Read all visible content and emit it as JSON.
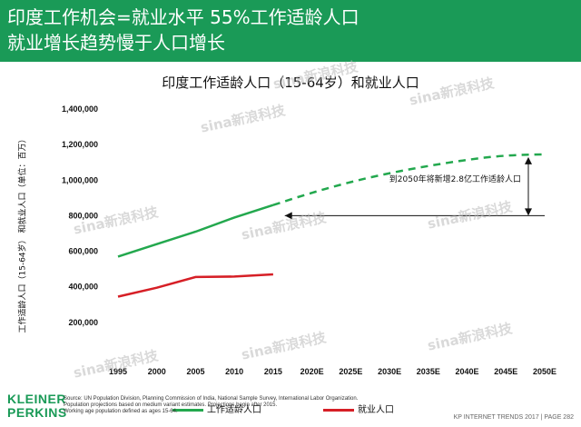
{
  "header": {
    "line1": "印度工作机会=就业水平 55%工作适龄人口",
    "line2": "就业增长趋势慢于人口增长"
  },
  "chart_data": {
    "type": "line",
    "title": "印度工作适龄人口（15-64岁）和就业人口",
    "ylabel": "工作适龄人口（15-64岁） 和就业人口（单位：百万）",
    "xlabel": "",
    "categories": [
      "1995",
      "2000",
      "2005",
      "2010",
      "2015",
      "2020E",
      "2025E",
      "2030E",
      "2035E",
      "2040E",
      "2045E",
      "2050E"
    ],
    "ylim": [
      0,
      1400000
    ],
    "yticks": [
      200000,
      400000,
      600000,
      800000,
      1000000,
      1200000,
      1400000
    ],
    "ytick_labels": [
      "200,000",
      "400,000",
      "600,000",
      "800,000",
      "1,000,000",
      "1,200,000",
      "1,400,000"
    ],
    "grid": false,
    "series": [
      {
        "name": "工作适龄人口",
        "color": "#23a84e",
        "values": [
          570000,
          640000,
          710000,
          790000,
          860000,
          930000,
          990000,
          1040000,
          1080000,
          1115000,
          1140000,
          1145000
        ],
        "projected_from_index": 4
      },
      {
        "name": "就业人口",
        "color": "#d61f26",
        "values": [
          345000,
          395000,
          455000,
          458000,
          470000,
          null,
          null,
          null,
          null,
          null,
          null,
          null
        ]
      }
    ],
    "annotations": [
      {
        "text": "到2050年将新增2.8亿工作适龄人口",
        "from_x_index": 4.3,
        "to_x_index": 11.0,
        "y": 800000
      }
    ],
    "legend_placement": "bottom"
  },
  "watermark": {
    "text": "sina新浪科技"
  },
  "logo": {
    "line1": "KLEINER",
    "line2": "PERKINS"
  },
  "sources": {
    "line1": "Source: UN Population Division, Planning Commission of India, National Sample Survey, International Labor Organization.",
    "line2": "Population projections based on medium variant estimates. Projections begin after 2015.",
    "line3": "Working age population defined as ages 15-64."
  },
  "footer": {
    "text": "KP INTERNET TRENDS 2017  |  PAGE 282"
  }
}
